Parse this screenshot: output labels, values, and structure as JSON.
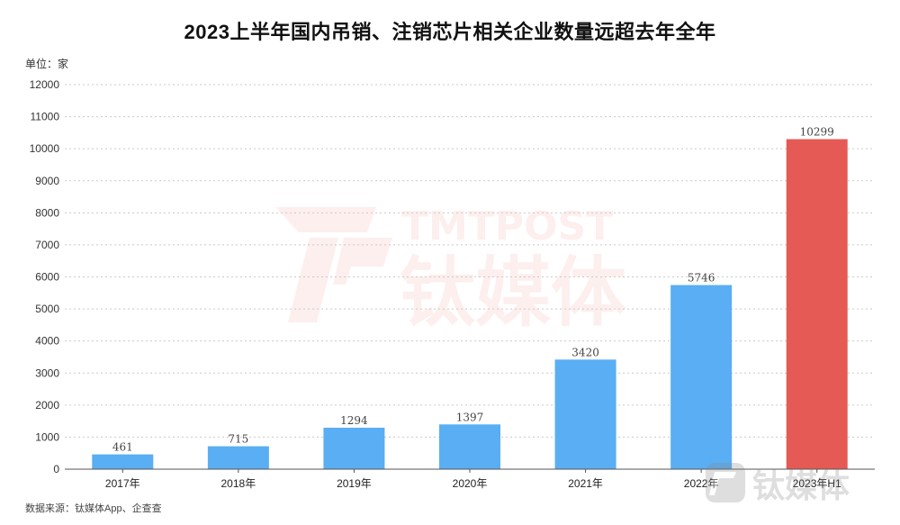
{
  "chart_data": {
    "type": "bar",
    "title": "2023上半年国内吊销、注销芯片相关企业数量远超去年全年",
    "unit_label": "单位：家",
    "categories": [
      "2017年",
      "2018年",
      "2019年",
      "2020年",
      "2021年",
      "2022年",
      "2023年H1"
    ],
    "values": [
      461,
      715,
      1294,
      1397,
      3420,
      5746,
      10299
    ],
    "ylim": [
      0,
      12000
    ],
    "y_ticks": [
      "0",
      "1000",
      "2000",
      "3000",
      "4000",
      "5000",
      "6000",
      "7000",
      "8000",
      "9000",
      "10000",
      "11000",
      "12000"
    ],
    "bar_colors": [
      "#5aaef3",
      "#5aaef3",
      "#5aaef3",
      "#5aaef3",
      "#5aaef3",
      "#5aaef3",
      "#e55a55"
    ],
    "grid": true,
    "source": "数据来源：钛媒体App、企查查"
  },
  "watermark": {
    "latin": "TMTPOST",
    "brand": "钛媒体"
  }
}
